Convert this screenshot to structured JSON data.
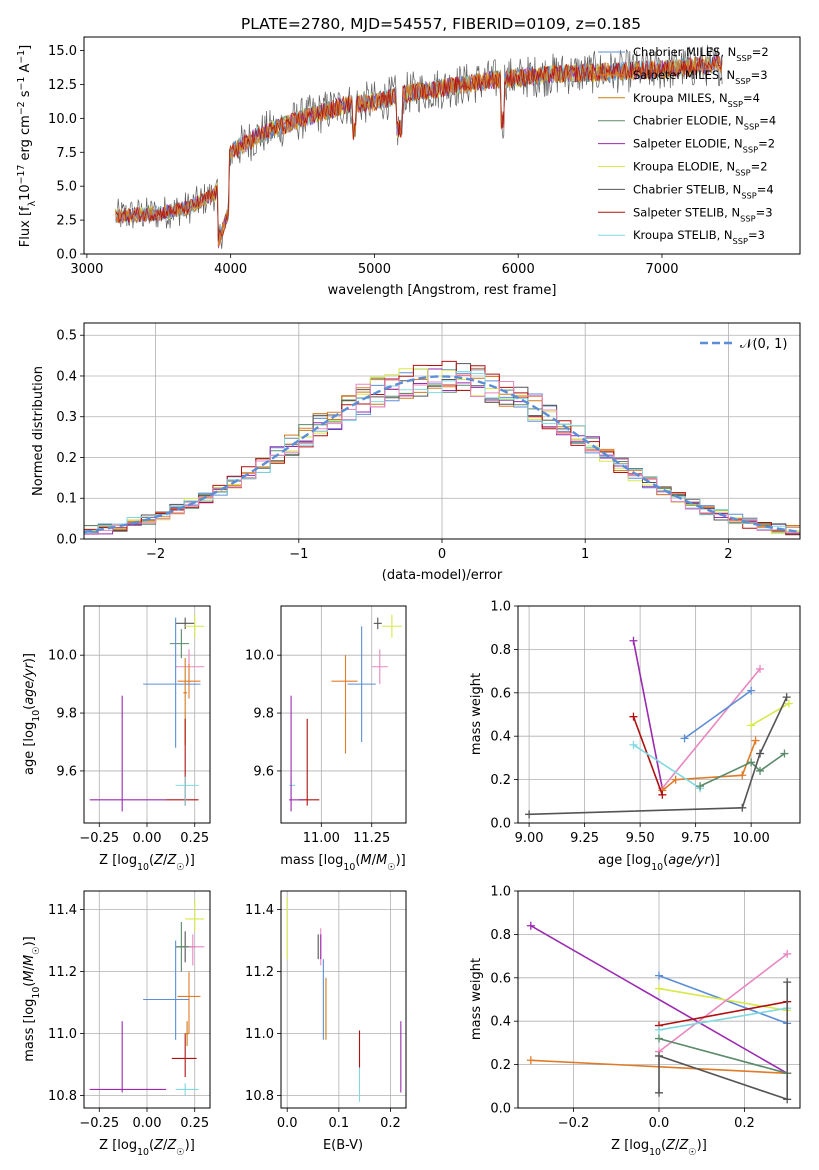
{
  "title": "PLATE=2780, MJD=54557, FIBERID=0109, z=0.185",
  "colors": {
    "Chabrier MILES": "#5b8ed6",
    "Salpeter MILES": "#e07b28",
    "Kroupa MILES": "#d07a1a",
    "Chabrier ELODIE": "#5a8a6a",
    "Salpeter ELODIE": "#9a2ab0",
    "Kroupa ELODIE": "#d7e84a",
    "Chabrier STELIB": "#555555",
    "Salpeter STELIB": "#b01010",
    "Kroupa STELIB": "#80d8e0",
    "pink": "#e887c0",
    "gauss": "#5b8ed6"
  },
  "chart_data": [
    {
      "panel": "spectrum",
      "type": "line",
      "title": "PLATE=2780, MJD=54557, FIBERID=0109, z=0.185",
      "xlabel": "wavelength [Angstrom, rest frame]",
      "ylabel": "Flux [fλ10⁻¹⁷ erg cm⁻² s⁻¹ A⁻¹]",
      "xlim": [
        2980,
        7960
      ],
      "ylim": [
        0,
        16
      ],
      "xticks": [
        3000,
        4000,
        5000,
        6000,
        7000
      ],
      "yticks": [
        0.0,
        2.5,
        5.0,
        7.5,
        10.0,
        12.5,
        15.0
      ],
      "legend_position": "right",
      "continuum": [
        [
          3200,
          2.8
        ],
        [
          3500,
          3.0
        ],
        [
          3700,
          3.4
        ],
        [
          3900,
          4.5
        ],
        [
          4000,
          7.5
        ],
        [
          4200,
          8.8
        ],
        [
          4500,
          10.0
        ],
        [
          4800,
          11.0
        ],
        [
          5000,
          11.2
        ],
        [
          5200,
          11.8
        ],
        [
          5500,
          12.3
        ],
        [
          5800,
          12.8
        ],
        [
          6000,
          13.0
        ],
        [
          6300,
          13.3
        ],
        [
          6600,
          13.4
        ],
        [
          7000,
          13.6
        ],
        [
          7400,
          14.0
        ]
      ],
      "series": [
        {
          "name": "Chabrier MILES, N_SSP=2",
          "color_key": "Chabrier MILES"
        },
        {
          "name": "Salpeter MILES, N_SSP=3",
          "color_key": "Salpeter MILES"
        },
        {
          "name": "Kroupa MILES, N_SSP=4",
          "color_key": "Kroupa MILES"
        },
        {
          "name": "Chabrier ELODIE, N_SSP=4",
          "color_key": "Chabrier ELODIE"
        },
        {
          "name": "Salpeter ELODIE, N_SSP=2",
          "color_key": "Salpeter ELODIE"
        },
        {
          "name": "Kroupa ELODIE, N_SSP=2",
          "color_key": "Kroupa ELODIE"
        },
        {
          "name": "Chabrier STELIB, N_SSP=4",
          "color_key": "Chabrier STELIB"
        },
        {
          "name": "Salpeter STELIB, N_SSP=3",
          "color_key": "Salpeter STELIB"
        },
        {
          "name": "Kroupa STELIB, N_SSP=3",
          "color_key": "Kroupa STELIB"
        }
      ]
    },
    {
      "panel": "residuals",
      "type": "histogram",
      "xlabel": "(data-model)/error",
      "ylabel": "Normed distribution",
      "xlim": [
        -2.5,
        2.5
      ],
      "ylim": [
        0,
        0.53
      ],
      "xticks": [
        -2,
        -1,
        0,
        1,
        2
      ],
      "yticks": [
        0.0,
        0.1,
        0.2,
        0.3,
        0.4,
        0.5
      ],
      "grid": true,
      "legend_position": "top-right",
      "legend": "N(0,1)",
      "bin_width": 0.1
    },
    {
      "panel": "age_vs_Z",
      "type": "errorbar",
      "xlabel": "Z [log10(Z/Z☉)]",
      "ylabel": "age  [log10(age/yr)]",
      "xlim": [
        -0.33,
        0.33
      ],
      "ylim": [
        9.42,
        10.17
      ],
      "xticks": [
        -0.25,
        0.0,
        0.25
      ],
      "yticks": [
        9.6,
        9.8,
        10.0
      ],
      "grid": true,
      "points": [
        {
          "c": "Chabrier STELIB",
          "x": 0.2,
          "y": 10.11,
          "x0": 0.15,
          "x1": 0.25,
          "y0": 10.09,
          "y1": 10.13
        },
        {
          "c": "Kroupa ELODIE",
          "x": 0.25,
          "y": 10.1,
          "x0": 0.2,
          "x1": 0.3,
          "y0": 10.06,
          "y1": 10.14
        },
        {
          "c": "Chabrier ELODIE",
          "x": 0.18,
          "y": 10.04,
          "x0": 0.12,
          "x1": 0.22,
          "y0": 9.99,
          "y1": 10.09
        },
        {
          "c": "pink",
          "x": 0.22,
          "y": 9.96,
          "x0": 0.15,
          "x1": 0.3,
          "y0": 9.9,
          "y1": 10.02
        },
        {
          "c": "Salpeter MILES",
          "x": 0.22,
          "y": 9.91,
          "x0": 0.16,
          "x1": 0.28,
          "y0": 9.85,
          "y1": 9.97
        },
        {
          "c": "Chabrier MILES",
          "x": 0.15,
          "y": 9.9,
          "x0": -0.02,
          "x1": 0.28,
          "y0": 9.68,
          "y1": 10.13
        },
        {
          "c": "Kroupa MILES",
          "x": 0.2,
          "y": 9.87,
          "x0": 0.19,
          "x1": 0.21,
          "y0": 9.69,
          "y1": 9.99
        },
        {
          "c": "Salpeter STELIB",
          "x": 0.2,
          "y": 9.5,
          "x0": 0.1,
          "x1": 0.27,
          "y0": 9.48,
          "y1": 9.78
        },
        {
          "c": "Kroupa STELIB",
          "x": 0.2,
          "y": 9.55,
          "x0": 0.15,
          "x1": 0.27,
          "y0": 9.48,
          "y1": 9.58
        },
        {
          "c": "Salpeter ELODIE",
          "x": -0.13,
          "y": 9.5,
          "x0": -0.3,
          "x1": 0.1,
          "y0": 9.46,
          "y1": 9.86
        }
      ]
    },
    {
      "panel": "age_vs_mass",
      "type": "errorbar",
      "xlabel": "mass [log10(M/M☉)]",
      "xlim": [
        10.8,
        11.42
      ],
      "ylim": [
        9.42,
        10.17
      ],
      "xticks": [
        11.0,
        11.25
      ],
      "yticks": [
        9.6,
        9.8,
        10.0
      ],
      "grid": true,
      "points": [
        {
          "c": "Chabrier STELIB",
          "x": 11.28,
          "y": 10.11,
          "x0": 11.26,
          "x1": 11.3,
          "y0": 10.09,
          "y1": 10.13
        },
        {
          "c": "Kroupa ELODIE",
          "x": 11.35,
          "y": 10.1,
          "x0": 11.3,
          "x1": 11.4,
          "y0": 10.06,
          "y1": 10.14
        },
        {
          "c": "pink",
          "x": 11.29,
          "y": 9.96,
          "x0": 11.25,
          "x1": 11.33,
          "y0": 9.9,
          "y1": 10.02
        },
        {
          "c": "Salpeter MILES",
          "x": 11.12,
          "y": 9.91,
          "x0": 11.05,
          "x1": 11.18,
          "y0": 9.66,
          "y1": 10.0
        },
        {
          "c": "Chabrier MILES",
          "x": 11.2,
          "y": 9.9,
          "x0": 11.13,
          "x1": 11.27,
          "y0": 9.7,
          "y1": 10.1
        },
        {
          "c": "Salpeter STELIB",
          "x": 10.93,
          "y": 9.5,
          "x0": 10.89,
          "x1": 10.99,
          "y0": 9.48,
          "y1": 9.78
        },
        {
          "c": "Kroupa STELIB",
          "x": 10.85,
          "y": 9.55,
          "x0": 10.84,
          "x1": 10.87,
          "y0": 9.48,
          "y1": 9.58
        },
        {
          "c": "Salpeter ELODIE",
          "x": 10.85,
          "y": 9.5,
          "x0": 10.84,
          "x1": 10.91,
          "y0": 9.46,
          "y1": 9.86
        }
      ]
    },
    {
      "panel": "weight_vs_age",
      "type": "line",
      "xlabel": "age  [log10(age/yr)]",
      "ylabel": "mass weight",
      "xlim": [
        8.95,
        10.22
      ],
      "ylim": [
        0,
        1.0
      ],
      "xticks": [
        9.0,
        9.25,
        9.5,
        9.75,
        10.0
      ],
      "yticks": [
        0.0,
        0.2,
        0.4,
        0.6,
        0.8,
        1.0
      ],
      "grid": true,
      "series": [
        {
          "c": "Salpeter ELODIE",
          "x": [
            9.47,
            9.6
          ],
          "y": [
            0.84,
            0.16
          ]
        },
        {
          "c": "pink",
          "x": [
            9.6,
            10.04
          ],
          "y": [
            0.16,
            0.71
          ]
        },
        {
          "c": "Chabrier MILES",
          "x": [
            9.7,
            10.0
          ],
          "y": [
            0.39,
            0.61
          ]
        },
        {
          "c": "Kroupa ELODIE",
          "x": [
            10.0,
            10.17
          ],
          "y": [
            0.45,
            0.55
          ]
        },
        {
          "c": "Salpeter MILES",
          "x": [
            9.6,
            9.66,
            9.96,
            10.02
          ],
          "y": [
            0.15,
            0.2,
            0.22,
            0.38
          ]
        },
        {
          "c": "Salpeter STELIB",
          "x": [
            9.47,
            9.6
          ],
          "y": [
            0.49,
            0.13
          ]
        },
        {
          "c": "Kroupa STELIB",
          "x": [
            9.47,
            9.77
          ],
          "y": [
            0.36,
            0.16
          ]
        },
        {
          "c": "Chabrier ELODIE",
          "x": [
            9.77,
            10.0,
            10.04,
            10.15
          ],
          "y": [
            0.17,
            0.28,
            0.24,
            0.32
          ]
        },
        {
          "c": "Chabrier STELIB",
          "x": [
            9.0,
            9.96,
            10.04,
            10.16
          ],
          "y": [
            0.04,
            0.07,
            0.32,
            0.58
          ]
        }
      ]
    },
    {
      "panel": "mass_vs_Z",
      "type": "errorbar",
      "xlabel": "Z [log10(Z/Z☉)]",
      "ylabel": "mass [log10(M/M☉)]",
      "xlim": [
        -0.33,
        0.33
      ],
      "ylim": [
        10.76,
        11.46
      ],
      "xticks": [
        -0.25,
        0.0,
        0.25
      ],
      "yticks": [
        10.8,
        11.0,
        11.2,
        11.4
      ],
      "grid": true,
      "points": [
        {
          "c": "Kroupa ELODIE",
          "x": 0.25,
          "y": 11.37,
          "x0": 0.2,
          "x1": 0.3,
          "y0": 11.33,
          "y1": 11.43
        },
        {
          "c": "Chabrier STELIB",
          "x": 0.2,
          "y": 11.28,
          "x0": 0.15,
          "x1": 0.25,
          "y0": 11.23,
          "y1": 11.33
        },
        {
          "c": "pink",
          "x": 0.24,
          "y": 11.28,
          "x0": 0.2,
          "x1": 0.3,
          "y0": 11.22,
          "y1": 11.32
        },
        {
          "c": "Chabrier ELODIE",
          "x": 0.18,
          "y": 11.28,
          "x0": 0.15,
          "x1": 0.22,
          "y0": 11.2,
          "y1": 11.36
        },
        {
          "c": "Salpeter MILES",
          "x": 0.22,
          "y": 11.12,
          "x0": 0.16,
          "x1": 0.28,
          "y0": 11.0,
          "y1": 11.2
        },
        {
          "c": "Chabrier MILES",
          "x": 0.15,
          "y": 11.11,
          "x0": -0.02,
          "x1": 0.22,
          "y0": 10.98,
          "y1": 11.3
        },
        {
          "c": "Kroupa MILES",
          "x": 0.21,
          "y": 11.0,
          "x0": 0.2,
          "x1": 0.22,
          "y0": 10.96,
          "y1": 11.04
        },
        {
          "c": "Salpeter STELIB",
          "x": 0.2,
          "y": 10.92,
          "x0": 0.13,
          "x1": 0.26,
          "y0": 10.86,
          "y1": 11.0
        },
        {
          "c": "Kroupa STELIB",
          "x": 0.2,
          "y": 10.82,
          "x0": 0.15,
          "x1": 0.27,
          "y0": 10.8,
          "y1": 10.84
        },
        {
          "c": "Salpeter ELODIE",
          "x": -0.13,
          "y": 10.82,
          "x0": -0.3,
          "x1": 0.1,
          "y0": 10.81,
          "y1": 11.04
        }
      ]
    },
    {
      "panel": "mass_vs_EBV",
      "type": "errorbar",
      "xlabel": "E(B-V)",
      "xlim": [
        -0.012,
        0.23
      ],
      "ylim": [
        10.76,
        11.46
      ],
      "xticks": [
        0.0,
        0.1,
        0.2
      ],
      "yticks": [
        10.8,
        11.0,
        11.2,
        11.4
      ],
      "grid": true,
      "points": [
        {
          "c": "Kroupa ELODIE",
          "x": 0.0,
          "y": 11.34,
          "x0": 0.0,
          "x1": 0.0,
          "y0": 11.24,
          "y1": 11.44
        },
        {
          "c": "Chabrier STELIB",
          "x": 0.06,
          "y": 11.28,
          "x0": 0.06,
          "x1": 0.06,
          "y0": 11.24,
          "y1": 11.32
        },
        {
          "c": "pink",
          "x": 0.065,
          "y": 11.28,
          "x0": 0.065,
          "x1": 0.065,
          "y0": 11.22,
          "y1": 11.34
        },
        {
          "c": "Salpeter ELODIE",
          "x": 0.065,
          "y": 11.28,
          "x0": 0.065,
          "x1": 0.065,
          "y0": 11.24,
          "y1": 11.32
        },
        {
          "c": "Chabrier MILES",
          "x": 0.07,
          "y": 11.11,
          "x0": 0.07,
          "x1": 0.07,
          "y0": 10.98,
          "y1": 11.24
        },
        {
          "c": "Kroupa MILES",
          "x": 0.075,
          "y": 11.08,
          "x0": 0.075,
          "x1": 0.075,
          "y0": 10.98,
          "y1": 11.18
        },
        {
          "c": "Salpeter STELIB",
          "x": 0.14,
          "y": 10.95,
          "x0": 0.14,
          "x1": 0.14,
          "y0": 10.89,
          "y1": 11.01
        },
        {
          "c": "Kroupa STELIB",
          "x": 0.14,
          "y": 10.84,
          "x0": 0.14,
          "x1": 0.14,
          "y0": 10.78,
          "y1": 10.89
        },
        {
          "c": "Salpeter ELODIE",
          "x": 0.22,
          "y": 10.92,
          "x0": 0.22,
          "x1": 0.22,
          "y0": 10.81,
          "y1": 11.04
        }
      ]
    },
    {
      "panel": "weight_vs_Z",
      "type": "line",
      "xlabel": "Z [log10(Z/Z☉)]",
      "ylabel": "mass weight",
      "xlim": [
        -0.33,
        0.33
      ],
      "ylim": [
        0,
        1.0
      ],
      "xticks": [
        -0.2,
        0.0,
        0.2
      ],
      "yticks": [
        0.0,
        0.2,
        0.4,
        0.6,
        0.8,
        1.0
      ],
      "grid": true,
      "series": [
        {
          "c": "Salpeter ELODIE",
          "x": [
            -0.3,
            0.3
          ],
          "y": [
            0.84,
            0.16
          ]
        },
        {
          "c": "Salpeter MILES",
          "x": [
            -0.3,
            0.3
          ],
          "y": [
            0.22,
            0.16
          ]
        },
        {
          "c": "Chabrier MILES",
          "x": [
            0.0,
            0.3
          ],
          "y": [
            0.61,
            0.39
          ]
        },
        {
          "c": "Kroupa ELODIE",
          "x": [
            0.0,
            0.3
          ],
          "y": [
            0.55,
            0.45
          ]
        },
        {
          "c": "pink",
          "x": [
            0.0,
            0.3
          ],
          "y": [
            0.26,
            0.71
          ]
        },
        {
          "c": "Salpeter STELIB",
          "x": [
            0.0,
            0.3
          ],
          "y": [
            0.38,
            0.49
          ]
        },
        {
          "c": "Kroupa STELIB",
          "x": [
            0.0,
            0.3
          ],
          "y": [
            0.36,
            0.46
          ]
        },
        {
          "c": "Chabrier ELODIE",
          "x": [
            0.0,
            0.3
          ],
          "y": [
            0.32,
            0.16
          ]
        },
        {
          "c": "Chabrier STELIB",
          "x": [
            0.0,
            0.0,
            0.3,
            0.3
          ],
          "y": [
            0.07,
            0.24,
            0.04,
            0.58
          ]
        }
      ]
    }
  ]
}
